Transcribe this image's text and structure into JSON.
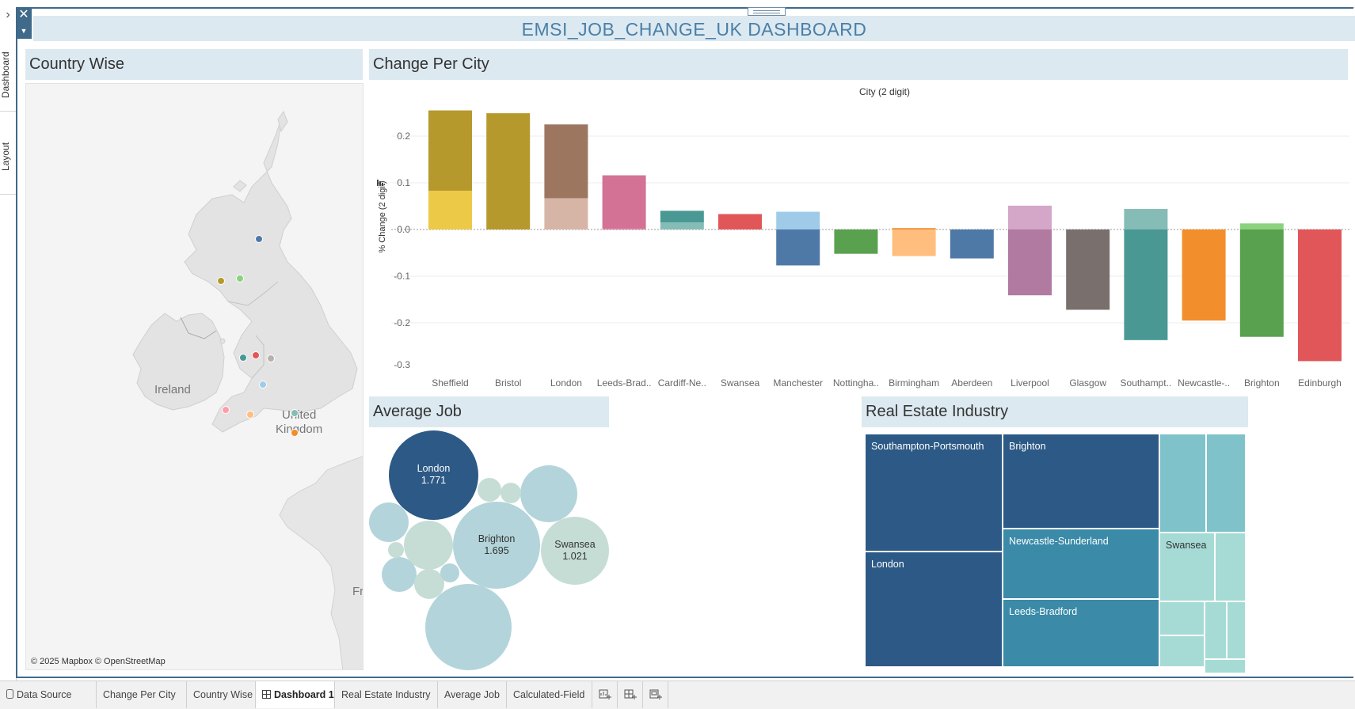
{
  "dashboard": {
    "title": "EMSI_JOB_CHANGE_UK DASHBOARD"
  },
  "side_tabs": [
    "Dashboard",
    "Layout"
  ],
  "controls": {
    "expand_glyph": "›",
    "close_glyph": "✕",
    "menu_glyph": "▼"
  },
  "sections": {
    "country_wise": "Country Wise",
    "change_per_city": "Change Per City",
    "average_job": "Average Job",
    "real_estate": "Real Estate Industry"
  },
  "map": {
    "labels": {
      "ireland": "Ireland",
      "uk_line1": "United",
      "uk_line2": "Kingdom",
      "france_partial": "Fr"
    },
    "attribution": "© 2025 Mapbox © OpenStreetMap",
    "city_dot_colors": [
      "#4e79a7",
      "#b6992d",
      "#8cd17d",
      "#499894",
      "#e15759",
      "#bab0ac",
      "#a0cbe8",
      "#ff9da7",
      "#ffbe7d",
      "#86bcb6",
      "#f28e2b"
    ]
  },
  "chart_data": {
    "type": "bar",
    "title": "City (2 digit)",
    "ylabel": "% Change (2 digit)",
    "xlabel": "",
    "ylim": [
      -0.3,
      0.25
    ],
    "yticks": [
      "0.2",
      "0.1",
      "0.0",
      "-0.1",
      "-0.2",
      "-0.3"
    ],
    "bars": [
      {
        "label": "Sheffield",
        "base": 0.083,
        "top": 0.255,
        "c_lo": "#edc948",
        "c_hi": "#b6992d"
      },
      {
        "label": "Bristol",
        "base": 0.0,
        "top": 0.249,
        "c_lo": "#b6992d",
        "c_hi": "#b6992d"
      },
      {
        "label": "London",
        "base": 0.067,
        "top": 0.225,
        "c_lo": "#d7b5a6",
        "c_hi": "#9d7660"
      },
      {
        "label": "Leeds-Brad..",
        "base": 0.003,
        "top": 0.116,
        "c_lo": "#d37295",
        "c_hi": "#d37295"
      },
      {
        "label": "Cardiff-Ne..",
        "base": 0.015,
        "top": 0.04,
        "c_lo": "#86bcb6",
        "c_hi": "#499894"
      },
      {
        "label": "Swansea",
        "base": 0.0,
        "top": 0.033,
        "c_lo": "#e15759",
        "c_hi": "#e15759"
      },
      {
        "label": "Manchester",
        "base": -0.077,
        "top": 0.038,
        "c_lo": "#4e79a7",
        "c_hi": "#a0cbe8"
      },
      {
        "label": "Nottingha..",
        "base": -0.052,
        "top": 0.0,
        "c_lo": "#59a14f",
        "c_hi": "#8cd17d"
      },
      {
        "label": "Birmingham",
        "base": -0.057,
        "top": 0.003,
        "c_lo": "#ffbe7d",
        "c_hi": "#f28e2b"
      },
      {
        "label": "Aberdeen",
        "base": -0.062,
        "top": 0.0,
        "c_lo": "#4e79a7",
        "c_hi": "#a0cbe8"
      },
      {
        "label": "Liverpool",
        "base": -0.141,
        "top": 0.051,
        "c_lo": "#b07aa1",
        "c_hi": "#d4a6c8"
      },
      {
        "label": "Glasgow",
        "base": -0.172,
        "top": 0.0,
        "c_lo": "#79706e",
        "c_hi": "#bab0ac"
      },
      {
        "label": "Southampt..",
        "base": -0.237,
        "top": 0.044,
        "c_lo": "#499894",
        "c_hi": "#86bcb6"
      },
      {
        "label": "Newcastle-..",
        "base": -0.195,
        "top": 0.0,
        "c_lo": "#f28e2b",
        "c_hi": "#f28e2b"
      },
      {
        "label": "Brighton",
        "base": -0.23,
        "top": 0.013,
        "c_lo": "#59a14f",
        "c_hi": "#8cd17d"
      },
      {
        "label": "Edinburgh",
        "base": -0.282,
        "top": 0.0,
        "c_lo": "#e15759",
        "c_hi": "#ff9d9a"
      }
    ]
  },
  "bubbles": {
    "labeled": [
      {
        "name": "London",
        "value": "1.771"
      },
      {
        "name": "Brighton",
        "value": "1.695"
      },
      {
        "name": "Swansea",
        "value": "1.021"
      }
    ]
  },
  "treemap": {
    "labeled": [
      "Southampton-Portsmouth",
      "London",
      "Brighton",
      "Newcastle-Sunderland",
      "Leeds-Bradford",
      "Swansea"
    ],
    "colors": {
      "dark": "#2c5985",
      "mid": "#3a8aa8",
      "light": "#7fc2ca",
      "pale": "#a6dbd5"
    }
  },
  "bottom_tabs": [
    {
      "label": "Data Source",
      "icon": "database-icon",
      "active": false
    },
    {
      "label": "Change Per City",
      "active": false
    },
    {
      "label": "Country Wise",
      "active": false
    },
    {
      "label": "Dashboard 1",
      "icon": "dashboard-icon",
      "active": true
    },
    {
      "label": "Real Estate Industry",
      "active": false
    },
    {
      "label": "Average Job",
      "active": false
    },
    {
      "label": "Calculated-Field",
      "active": false
    }
  ],
  "bottom_actions": [
    "new-worksheet-icon",
    "new-dashboard-icon",
    "new-story-icon"
  ]
}
